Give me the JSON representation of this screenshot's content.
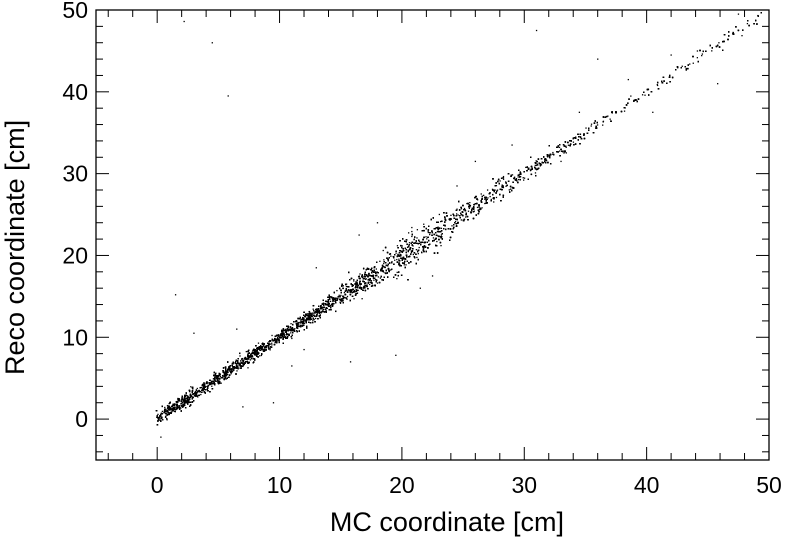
{
  "chart_data": {
    "type": "scatter",
    "title": "",
    "xlabel": "MC coordinate [cm]",
    "ylabel": "Reco coordinate [cm]",
    "xlim": [
      -5,
      50
    ],
    "ylim": [
      -5,
      50
    ],
    "x_ticks": [
      "0",
      "10",
      "20",
      "30",
      "40",
      "50"
    ],
    "y_ticks": [
      "0",
      "10",
      "20",
      "30",
      "40",
      "50"
    ],
    "grid": false,
    "legend": "none",
    "marker_color": "#000000",
    "series": [
      {
        "band": {
          "relation": "reco = mc",
          "x_range": [
            0,
            50
          ],
          "spread_sigma_by_x": [
            [
              0,
              0.4
            ],
            [
              10,
              0.35
            ],
            [
              15,
              0.45
            ],
            [
              18,
              0.9
            ],
            [
              20,
              1.1
            ],
            [
              22,
              1.0
            ],
            [
              25,
              0.7
            ],
            [
              30,
              0.45
            ],
            [
              40,
              0.3
            ],
            [
              50,
              0.4
            ]
          ],
          "density_by_x": [
            [
              0,
              1.0
            ],
            [
              10,
              0.95
            ],
            [
              15,
              0.85
            ],
            [
              18,
              0.8
            ],
            [
              21,
              0.75
            ],
            [
              25,
              0.6
            ],
            [
              30,
              0.35
            ],
            [
              35,
              0.2
            ],
            [
              40,
              0.12
            ],
            [
              45,
              0.08
            ],
            [
              50,
              0.06
            ]
          ]
        },
        "outliers": [
          [
            1.5,
            15.2
          ],
          [
            4.5,
            46.0
          ],
          [
            5.8,
            39.5
          ],
          [
            2.2,
            48.6
          ],
          [
            9.5,
            2.0
          ],
          [
            13.0,
            18.5
          ],
          [
            15.8,
            7.0
          ],
          [
            16.5,
            22.5
          ],
          [
            19.5,
            7.8
          ],
          [
            21.5,
            16.0
          ],
          [
            31.0,
            47.5
          ],
          [
            36.0,
            44.0
          ],
          [
            45.8,
            41.0
          ],
          [
            7.0,
            1.5
          ],
          [
            3.0,
            10.5
          ],
          [
            27.0,
            28.0
          ],
          [
            0.3,
            -2.2
          ],
          [
            12.0,
            8.5
          ],
          [
            24.5,
            28.5
          ],
          [
            33.0,
            31.5
          ],
          [
            38.5,
            41.5
          ],
          [
            42.0,
            44.5
          ],
          [
            47.5,
            49.5
          ],
          [
            18.0,
            24.0
          ],
          [
            22.5,
            17.5
          ],
          [
            26.0,
            31.5
          ],
          [
            34.5,
            37.5
          ],
          [
            6.5,
            11.0
          ],
          [
            11.0,
            6.5
          ],
          [
            29.0,
            33.5
          ],
          [
            40.5,
            37.5
          ]
        ]
      }
    ]
  }
}
